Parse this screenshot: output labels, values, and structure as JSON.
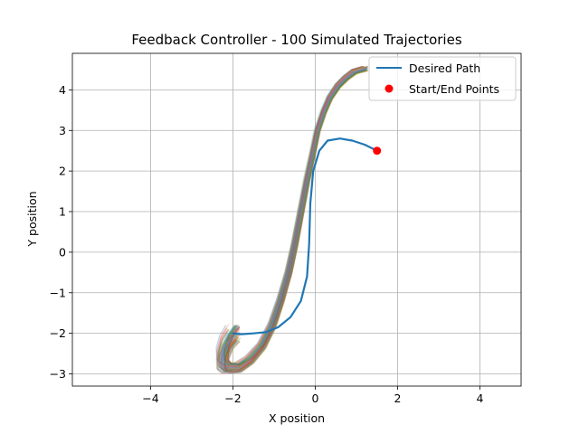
{
  "chart_data": {
    "type": "line",
    "title": "Feedback Controller - 100 Simulated Trajectories",
    "xlabel": "X position",
    "ylabel": "Y position",
    "xlim": [
      -5.9,
      5.0
    ],
    "ylim": [
      -3.3,
      4.9
    ],
    "xticks": [
      -4,
      -2,
      0,
      2,
      4
    ],
    "xtick_labels": [
      "−4",
      "−2",
      "0",
      "2",
      "4"
    ],
    "yticks": [
      -3,
      -2,
      -1,
      0,
      1,
      2,
      3,
      4
    ],
    "ytick_labels": [
      "−3",
      "−2",
      "−1",
      "0",
      "1",
      "2",
      "3",
      "4"
    ],
    "grid": true,
    "legend_position": "top-right",
    "desired_path": {
      "name": "Desired Path",
      "color": "#1f77b4",
      "x": [
        1.5,
        1.2,
        0.9,
        0.6,
        0.3,
        0.1,
        -0.05,
        -0.12,
        -0.15,
        -0.2,
        -0.35,
        -0.6,
        -0.9,
        -1.2,
        -1.5,
        -1.8,
        -2.0
      ],
      "y": [
        2.5,
        2.65,
        2.75,
        2.8,
        2.75,
        2.5,
        2.0,
        1.2,
        0.2,
        -0.6,
        -1.2,
        -1.6,
        -1.85,
        -1.97,
        -2.0,
        -2.02,
        -2.0
      ]
    },
    "start_end_points": {
      "name": "Start/End Points",
      "color": "#ff0000",
      "x": [
        1.5
      ],
      "y": [
        2.5
      ]
    },
    "simulated_trajectories": {
      "count": 100,
      "palette": [
        "#1f77b4",
        "#ff7f0e",
        "#2ca02c",
        "#d62728",
        "#9467bd",
        "#8c564b",
        "#e377c2",
        "#7f7f7f",
        "#bcbd22",
        "#17becf"
      ],
      "mean_x": [
        -2.0,
        -2.15,
        -2.25,
        -2.25,
        -2.15,
        -1.9,
        -1.6,
        -1.3,
        -1.05,
        -0.85,
        -0.65,
        -0.5,
        -0.35,
        -0.2,
        -0.05,
        0.05,
        0.2,
        0.35,
        0.55,
        0.75,
        0.95,
        1.2
      ],
      "mean_y": [
        -2.0,
        -2.2,
        -2.5,
        -2.75,
        -2.85,
        -2.85,
        -2.65,
        -2.3,
        -1.8,
        -1.2,
        -0.5,
        0.2,
        1.0,
        1.8,
        2.5,
        3.0,
        3.45,
        3.8,
        4.1,
        4.3,
        4.45,
        4.52
      ]
    }
  }
}
